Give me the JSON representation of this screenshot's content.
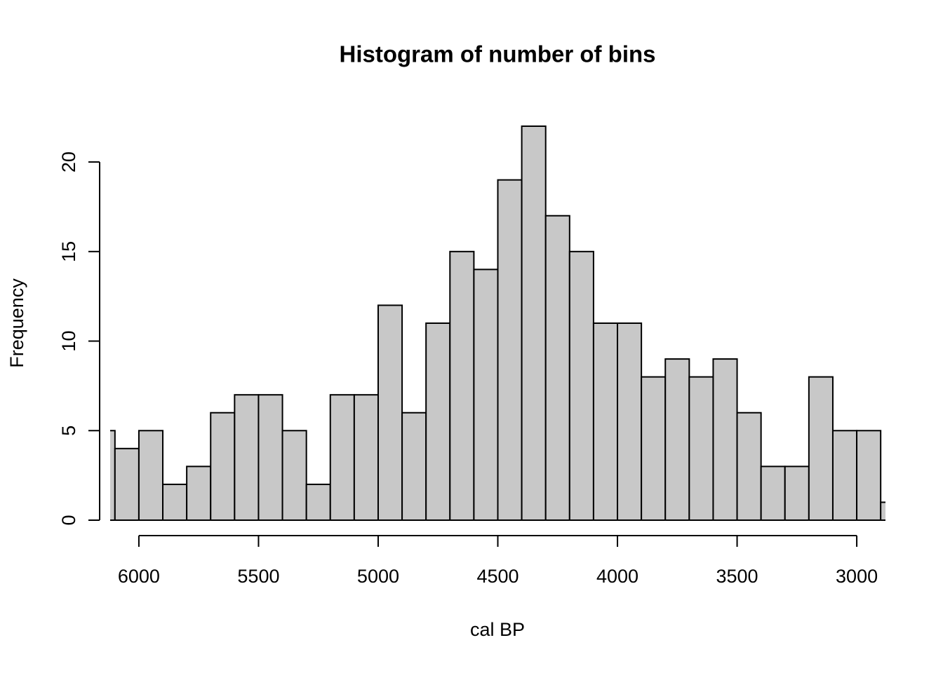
{
  "chart_data": {
    "type": "histogram",
    "title": "Histogram of number of bins",
    "x_label": "cal BP",
    "y_label": "Frequency",
    "bins": [
      6200,
      6100,
      6000,
      5900,
      5800,
      5700,
      5600,
      5500,
      5400,
      5300,
      5200,
      5100,
      5000,
      4900,
      4800,
      4700,
      4600,
      4500,
      4400,
      4300,
      4200,
      4100,
      4000,
      3900,
      3800,
      3700,
      3600,
      3500,
      3400,
      3300,
      3200,
      3100,
      3000,
      2900,
      2800
    ],
    "values": [
      5,
      4,
      5,
      2,
      3,
      6,
      7,
      7,
      5,
      2,
      7,
      7,
      12,
      6,
      11,
      15,
      14,
      19,
      22,
      17,
      15,
      11,
      11,
      8,
      9,
      8,
      9,
      6,
      3,
      3,
      8,
      5,
      5,
      1
    ],
    "color": "#c8c8c8",
    "xlim": [
      6120,
      2880
    ],
    "xticks": [
      6000,
      5500,
      5000,
      4500,
      4000,
      3500,
      3000
    ],
    "ylim": [
      0,
      22
    ],
    "yticks": [
      0,
      5,
      10,
      15,
      20
    ]
  }
}
